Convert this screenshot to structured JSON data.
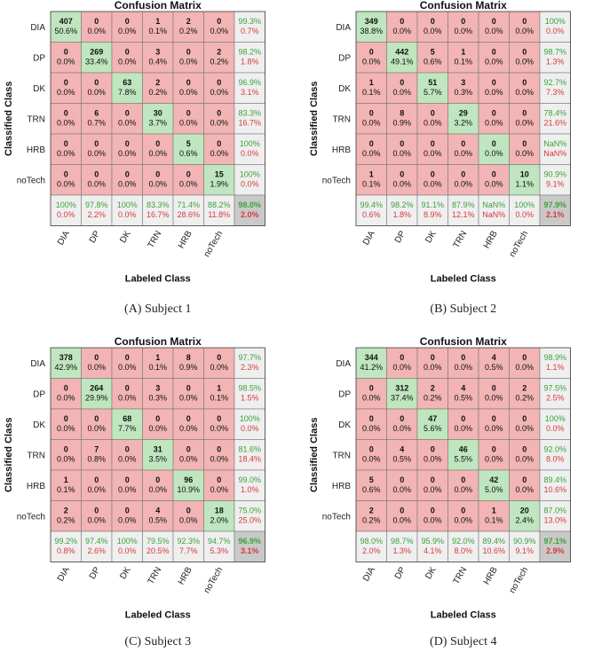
{
  "colors": {
    "correct_cell": "#bfe6bf",
    "wrong_cell": "#f2b4b4",
    "summary_cell": "#efefef",
    "overall_cell": "#c9c9c9",
    "good_text": "#3aa33a",
    "bad_text": "#d63b3b",
    "grid": "#7a7a7a"
  },
  "chart_data": [
    {
      "type": "heatmap",
      "title": "Confusion Matrix",
      "caption": "(A) Subject 1",
      "xlabel": "Labeled Class",
      "ylabel": "Classified Class",
      "classes": [
        "DIA",
        "DP",
        "DK",
        "TRN",
        "HRB",
        "noTech"
      ],
      "counts": [
        [
          "407",
          "0",
          "0",
          "1",
          "2",
          "0"
        ],
        [
          "0",
          "269",
          "0",
          "3",
          "0",
          "2"
        ],
        [
          "0",
          "0",
          "63",
          "2",
          "0",
          "0"
        ],
        [
          "0",
          "6",
          "0",
          "30",
          "0",
          "0"
        ],
        [
          "0",
          "0",
          "0",
          "0",
          "5",
          "0"
        ],
        [
          "0",
          "0",
          "0",
          "0",
          "0",
          "15"
        ]
      ],
      "percents": [
        [
          "50.6%",
          "0.0%",
          "0.0%",
          "0.1%",
          "0.2%",
          "0.0%"
        ],
        [
          "0.0%",
          "33.4%",
          "0.0%",
          "0.4%",
          "0.0%",
          "0.2%"
        ],
        [
          "0.0%",
          "0.0%",
          "7.8%",
          "0.2%",
          "0.0%",
          "0.0%"
        ],
        [
          "0.0%",
          "0.7%",
          "0.0%",
          "3.7%",
          "0.0%",
          "0.0%"
        ],
        [
          "0.0%",
          "0.0%",
          "0.0%",
          "0.0%",
          "0.6%",
          "0.0%"
        ],
        [
          "0.0%",
          "0.0%",
          "0.0%",
          "0.0%",
          "0.0%",
          "1.9%"
        ]
      ],
      "row_summary": [
        [
          "99.3%",
          "0.7%"
        ],
        [
          "98.2%",
          "1.8%"
        ],
        [
          "96.9%",
          "3.1%"
        ],
        [
          "83.3%",
          "16.7%"
        ],
        [
          "100%",
          "0.0%"
        ],
        [
          "100%",
          "0.0%"
        ]
      ],
      "col_summary": [
        [
          "100%",
          "0.0%"
        ],
        [
          "97.8%",
          "2.2%"
        ],
        [
          "100%",
          "0.0%"
        ],
        [
          "83.3%",
          "16.7%"
        ],
        [
          "71.4%",
          "28.6%"
        ],
        [
          "88.2%",
          "11.8%"
        ]
      ],
      "overall": [
        "98.0%",
        "2.0%"
      ]
    },
    {
      "type": "heatmap",
      "title": "Confusion Matrix",
      "caption": "(B) Subject 2",
      "xlabel": "Labeled Class",
      "ylabel": "Classified Class",
      "classes": [
        "DIA",
        "DP",
        "DK",
        "TRN",
        "HRB",
        "noTech"
      ],
      "counts": [
        [
          "349",
          "0",
          "0",
          "0",
          "0",
          "0"
        ],
        [
          "0",
          "442",
          "5",
          "1",
          "0",
          "0"
        ],
        [
          "1",
          "0",
          "51",
          "3",
          "0",
          "0"
        ],
        [
          "0",
          "8",
          "0",
          "29",
          "0",
          "0"
        ],
        [
          "0",
          "0",
          "0",
          "0",
          "0",
          "0"
        ],
        [
          "1",
          "0",
          "0",
          "0",
          "0",
          "10"
        ]
      ],
      "percents": [
        [
          "38.8%",
          "0.0%",
          "0.0%",
          "0.0%",
          "0.0%",
          "0.0%"
        ],
        [
          "0.0%",
          "49.1%",
          "0.6%",
          "0.1%",
          "0.0%",
          "0.0%"
        ],
        [
          "0.1%",
          "0.0%",
          "5.7%",
          "0.3%",
          "0.0%",
          "0.0%"
        ],
        [
          "0.0%",
          "0.9%",
          "0.0%",
          "3.2%",
          "0.0%",
          "0.0%"
        ],
        [
          "0.0%",
          "0.0%",
          "0.0%",
          "0.0%",
          "0.0%",
          "0.0%"
        ],
        [
          "0.1%",
          "0.0%",
          "0.0%",
          "0.0%",
          "0.0%",
          "1.1%"
        ]
      ],
      "row_summary": [
        [
          "100%",
          "0.0%"
        ],
        [
          "98.7%",
          "1.3%"
        ],
        [
          "92.7%",
          "7.3%"
        ],
        [
          "78.4%",
          "21.6%"
        ],
        [
          "NaN%",
          "NaN%"
        ],
        [
          "90.9%",
          "9.1%"
        ]
      ],
      "col_summary": [
        [
          "99.4%",
          "0.6%"
        ],
        [
          "98.2%",
          "1.8%"
        ],
        [
          "91.1%",
          "8.9%"
        ],
        [
          "87.9%",
          "12.1%"
        ],
        [
          "NaN%",
          "NaN%"
        ],
        [
          "100%",
          "0.0%"
        ]
      ],
      "overall": [
        "97.9%",
        "2.1%"
      ]
    },
    {
      "type": "heatmap",
      "title": "Confusion Matrix",
      "caption": "(C) Subject 3",
      "xlabel": "Labeled Class",
      "ylabel": "Classified Class",
      "classes": [
        "DIA",
        "DP",
        "DK",
        "TRN",
        "HRB",
        "noTech"
      ],
      "counts": [
        [
          "378",
          "0",
          "0",
          "1",
          "8",
          "0"
        ],
        [
          "0",
          "264",
          "0",
          "3",
          "0",
          "1"
        ],
        [
          "0",
          "0",
          "68",
          "0",
          "0",
          "0"
        ],
        [
          "0",
          "7",
          "0",
          "31",
          "0",
          "0"
        ],
        [
          "1",
          "0",
          "0",
          "0",
          "96",
          "0"
        ],
        [
          "2",
          "0",
          "0",
          "4",
          "0",
          "18"
        ]
      ],
      "percents": [
        [
          "42.9%",
          "0.0%",
          "0.0%",
          "0.1%",
          "0.9%",
          "0.0%"
        ],
        [
          "0.0%",
          "29.9%",
          "0.0%",
          "0.3%",
          "0.0%",
          "0.1%"
        ],
        [
          "0.0%",
          "0.0%",
          "7.7%",
          "0.0%",
          "0.0%",
          "0.0%"
        ],
        [
          "0.0%",
          "0.8%",
          "0.0%",
          "3.5%",
          "0.0%",
          "0.0%"
        ],
        [
          "0.1%",
          "0.0%",
          "0.0%",
          "0.0%",
          "10.9%",
          "0.0%"
        ],
        [
          "0.2%",
          "0.0%",
          "0.0%",
          "0.5%",
          "0.0%",
          "2.0%"
        ]
      ],
      "row_summary": [
        [
          "97.7%",
          "2.3%"
        ],
        [
          "98.5%",
          "1.5%"
        ],
        [
          "100%",
          "0.0%"
        ],
        [
          "81.6%",
          "18.4%"
        ],
        [
          "99.0%",
          "1.0%"
        ],
        [
          "75.0%",
          "25.0%"
        ]
      ],
      "col_summary": [
        [
          "99.2%",
          "0.8%"
        ],
        [
          "97.4%",
          "2.6%"
        ],
        [
          "100%",
          "0.0%"
        ],
        [
          "79.5%",
          "20.5%"
        ],
        [
          "92.3%",
          "7.7%"
        ],
        [
          "94.7%",
          "5.3%"
        ]
      ],
      "overall": [
        "96.9%",
        "3.1%"
      ]
    },
    {
      "type": "heatmap",
      "title": "Confusion Matrix",
      "caption": "(D) Subject 4",
      "xlabel": "Labeled Class",
      "ylabel": "Classified Class",
      "classes": [
        "DIA",
        "DP",
        "DK",
        "TRN",
        "HRB",
        "noTech"
      ],
      "counts": [
        [
          "344",
          "0",
          "0",
          "0",
          "4",
          "0"
        ],
        [
          "0",
          "312",
          "2",
          "4",
          "0",
          "2"
        ],
        [
          "0",
          "0",
          "47",
          "0",
          "0",
          "0"
        ],
        [
          "0",
          "4",
          "0",
          "46",
          "0",
          "0"
        ],
        [
          "5",
          "0",
          "0",
          "0",
          "42",
          "0"
        ],
        [
          "2",
          "0",
          "0",
          "0",
          "1",
          "20"
        ]
      ],
      "percents": [
        [
          "41.2%",
          "0.0%",
          "0.0%",
          "0.0%",
          "0.5%",
          "0.0%"
        ],
        [
          "0.0%",
          "37.4%",
          "0.2%",
          "0.5%",
          "0.0%",
          "0.2%"
        ],
        [
          "0.0%",
          "0.0%",
          "5.6%",
          "0.0%",
          "0.0%",
          "0.0%"
        ],
        [
          "0.0%",
          "0.5%",
          "0.0%",
          "5.5%",
          "0.0%",
          "0.0%"
        ],
        [
          "0.6%",
          "0.0%",
          "0.0%",
          "0.0%",
          "5.0%",
          "0.0%"
        ],
        [
          "0.2%",
          "0.0%",
          "0.0%",
          "0.0%",
          "0.1%",
          "2.4%"
        ]
      ],
      "row_summary": [
        [
          "98.9%",
          "1.1%"
        ],
        [
          "97.5%",
          "2.5%"
        ],
        [
          "100%",
          "0.0%"
        ],
        [
          "92.0%",
          "8.0%"
        ],
        [
          "89.4%",
          "10.6%"
        ],
        [
          "87.0%",
          "13.0%"
        ]
      ],
      "col_summary": [
        [
          "98.0%",
          "2.0%"
        ],
        [
          "98.7%",
          "1.3%"
        ],
        [
          "95.9%",
          "4.1%"
        ],
        [
          "92.0%",
          "8.0%"
        ],
        [
          "89.4%",
          "10.6%"
        ],
        [
          "90.9%",
          "9.1%"
        ]
      ],
      "overall": [
        "97.1%",
        "2.9%"
      ]
    }
  ]
}
